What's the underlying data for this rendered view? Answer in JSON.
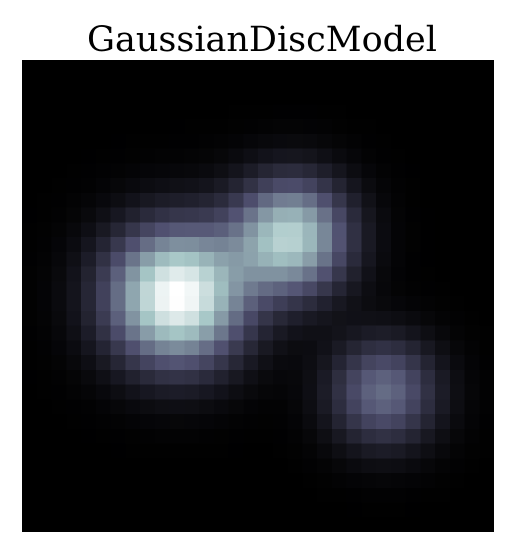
{
  "chart_data": {
    "type": "heatmap",
    "title": "GaussianDiscModel",
    "xlabel": "",
    "ylabel": "",
    "grid": false,
    "colormap": "bone",
    "colorbar": false,
    "resolution": [
      32,
      32
    ],
    "components": [
      {
        "x": 10.5,
        "y": 16.0,
        "sigma": 3.2,
        "amplitude": 1.0
      },
      {
        "x": 18.2,
        "y": 12.0,
        "sigma": 2.7,
        "amplitude": 0.78
      },
      {
        "x": 24.5,
        "y": 22.5,
        "sigma": 2.5,
        "amplitude": 0.45
      }
    ],
    "colors": {
      "low": "#000000",
      "mid": "#595974",
      "high": "#ffffff",
      "frame": "#000000"
    }
  }
}
